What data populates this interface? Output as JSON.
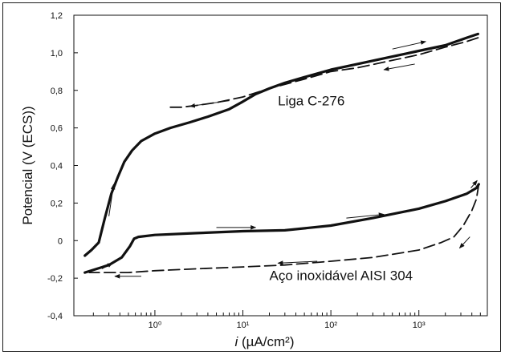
{
  "chart_data": {
    "type": "line",
    "title": "",
    "xlabel_italic": "i",
    "xlabel_rest": " (µA/cm²)",
    "ylabel": "Potencial (V (ECS))",
    "x_scale": "log",
    "xlim": [
      0.12,
      6000
    ],
    "ylim": [
      -0.4,
      1.2
    ],
    "y_ticks": [
      -0.4,
      -0.2,
      0,
      0.2,
      0.4,
      0.6,
      0.8,
      1.0,
      1.2
    ],
    "y_tick_labels": [
      "-0,4",
      "-0,2",
      "0",
      "0,2",
      "0,4",
      "0,6",
      "0,8",
      "1,0",
      "1,2"
    ],
    "x_ticks": [
      1,
      10,
      100,
      1000
    ],
    "x_tick_labels": [
      "10⁰",
      "10¹",
      "10²",
      "10³"
    ],
    "grid": false,
    "color": "#111111",
    "annotations": [
      {
        "text": "Liga C-276",
        "x": 25,
        "y": 0.72
      },
      {
        "text": "Aço inoxidável AISI 304",
        "x": 20,
        "y": -0.21
      }
    ],
    "series": [
      {
        "style": "solid",
        "points": [
          [
            0.16,
            -0.08
          ],
          [
            0.19,
            -0.05
          ],
          [
            0.23,
            -0.01
          ],
          [
            0.27,
            0.12
          ],
          [
            0.32,
            0.25
          ],
          [
            0.38,
            0.34
          ],
          [
            0.45,
            0.42
          ],
          [
            0.55,
            0.48
          ],
          [
            0.7,
            0.53
          ],
          [
            1,
            0.57
          ],
          [
            1.5,
            0.6
          ],
          [
            2.5,
            0.63
          ],
          [
            4,
            0.66
          ],
          [
            7,
            0.7
          ],
          [
            10,
            0.74
          ],
          [
            14,
            0.78
          ],
          [
            20,
            0.81
          ],
          [
            30,
            0.84
          ],
          [
            50,
            0.87
          ],
          [
            100,
            0.91
          ],
          [
            200,
            0.94
          ],
          [
            500,
            0.98
          ],
          [
            1000,
            1.01
          ],
          [
            2000,
            1.04
          ],
          [
            3500,
            1.08
          ],
          [
            4700,
            1.1
          ]
        ]
      },
      {
        "style": "dashed",
        "points": [
          [
            4700,
            1.08
          ],
          [
            3500,
            1.06
          ],
          [
            2000,
            1.03
          ],
          [
            1000,
            0.99
          ],
          [
            500,
            0.96
          ],
          [
            200,
            0.92
          ],
          [
            100,
            0.9
          ],
          [
            50,
            0.86
          ],
          [
            20,
            0.81
          ],
          [
            10,
            0.765
          ],
          [
            5,
            0.735
          ],
          [
            3,
            0.72
          ],
          [
            2,
            0.71
          ],
          [
            1.5,
            0.71
          ]
        ]
      },
      {
        "style": "solid",
        "points": [
          [
            0.16,
            -0.17
          ],
          [
            0.22,
            -0.15
          ],
          [
            0.3,
            -0.13
          ],
          [
            0.42,
            -0.09
          ],
          [
            0.52,
            -0.03
          ],
          [
            0.58,
            0.01
          ],
          [
            0.65,
            0.02
          ],
          [
            1,
            0.03
          ],
          [
            3,
            0.04
          ],
          [
            10,
            0.05
          ],
          [
            30,
            0.055
          ],
          [
            100,
            0.08
          ],
          [
            300,
            0.12
          ],
          [
            1000,
            0.17
          ],
          [
            2000,
            0.21
          ],
          [
            3500,
            0.25
          ],
          [
            4500,
            0.28
          ],
          [
            4800,
            0.3
          ]
        ]
      },
      {
        "style": "dashed",
        "points": [
          [
            4800,
            0.3
          ],
          [
            4500,
            0.22
          ],
          [
            4000,
            0.16
          ],
          [
            3200,
            0.08
          ],
          [
            2500,
            0.02
          ],
          [
            1800,
            -0.01
          ],
          [
            1000,
            -0.05
          ],
          [
            300,
            -0.09
          ],
          [
            100,
            -0.11
          ],
          [
            30,
            -0.13
          ],
          [
            10,
            -0.14
          ],
          [
            3,
            -0.15
          ],
          [
            1,
            -0.16
          ],
          [
            0.5,
            -0.17
          ],
          [
            0.3,
            -0.17
          ],
          [
            0.18,
            -0.17
          ]
        ]
      }
    ],
    "arrows": [
      {
        "from": [
          0.25,
          -0.15
        ],
        "to": [
          0.33,
          -0.12
        ]
      },
      {
        "from": [
          0.3,
          0.13
        ],
        "to": [
          0.34,
          0.3
        ]
      },
      {
        "from": [
          7,
          0.745
        ],
        "to": [
          2.5,
          0.715
        ]
      },
      {
        "from": [
          500,
          1.02
        ],
        "to": [
          1200,
          1.06
        ]
      },
      {
        "from": [
          900,
          0.94
        ],
        "to": [
          400,
          0.91
        ]
      },
      {
        "from": [
          5,
          0.07
        ],
        "to": [
          14,
          0.07
        ]
      },
      {
        "from": [
          150,
          0.12
        ],
        "to": [
          400,
          0.14
        ]
      },
      {
        "from": [
          3900,
          0.28
        ],
        "to": [
          4600,
          0.32
        ]
      },
      {
        "from": [
          3800,
          0.02
        ],
        "to": [
          2900,
          -0.04
        ]
      },
      {
        "from": [
          70,
          -0.11
        ],
        "to": [
          25,
          -0.12
        ]
      },
      {
        "from": [
          0.7,
          -0.19
        ],
        "to": [
          0.35,
          -0.19
        ]
      }
    ]
  }
}
